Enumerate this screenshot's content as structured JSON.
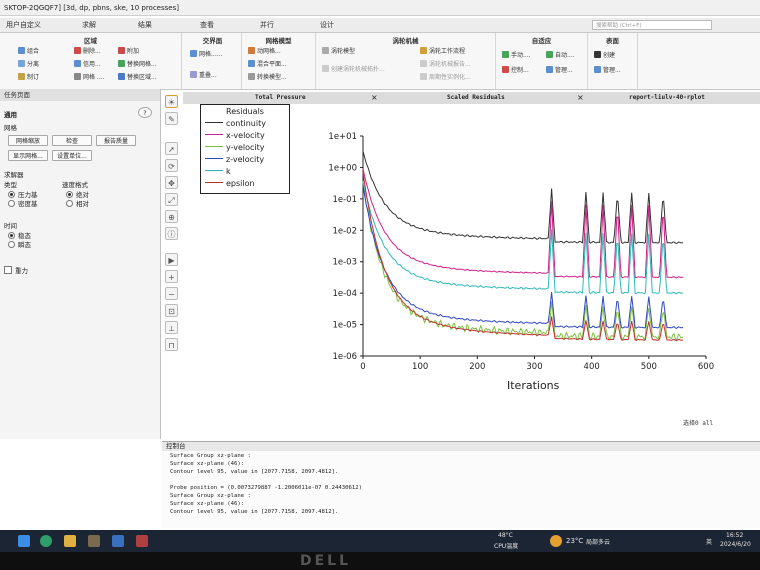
{
  "window": {
    "title": "SKTOP-2QGQF7] [3d, dp, pbns, ske, 10 processes]"
  },
  "menu": [
    "用户自定义",
    "求解",
    "结果",
    "查看",
    "并行",
    "设计"
  ],
  "search_placeholder": "搜索帮助 (Ctrl+F)",
  "ribbon": {
    "groups": [
      {
        "title": "区域",
        "buttons": [
          "组合",
          "分离",
          "制订",
          "附加",
          "替换网格...",
          "替换区域..."
        ]
      },
      {
        "title": "网格",
        "buttons": [
          "删除...",
          "信用...",
          "网格 ...."
        ]
      },
      {
        "title": "交界面",
        "buttons": [
          "网格......",
          "重叠..."
        ]
      },
      {
        "title": "网格模型",
        "buttons": [
          "动网格...",
          "混合平面...",
          "转换模型..."
        ]
      },
      {
        "title": "涡轮机械",
        "buttons": [
          "涡轮模型",
          "创建涡轮机械拓扑...",
          "涡轮工作流程",
          "涡轮机械报告...",
          "周期性实例化..."
        ]
      },
      {
        "title": "自适应",
        "buttons": [
          "手动....",
          "自动....",
          "控制...",
          "管理..."
        ]
      },
      {
        "title": "表面",
        "buttons": [
          "创建",
          "管理..."
        ]
      }
    ]
  },
  "task_panel": {
    "title": "任务页面",
    "general_label": "通用",
    "mesh_label": "网格",
    "buttons": [
      "网格缩放",
      "检查",
      "报告质量",
      "显示网格...",
      "设置单位..."
    ],
    "solver_label": "求解器",
    "type_label": "类型",
    "type_options": [
      {
        "label": "压力基",
        "on": true
      },
      {
        "label": "密度基",
        "on": false
      }
    ],
    "velocity_label": "速度格式",
    "velocity_options": [
      {
        "label": "绝对",
        "on": true
      },
      {
        "label": "相对",
        "on": false
      }
    ],
    "time_label": "时间",
    "time_options": [
      {
        "label": "稳态",
        "on": true
      },
      {
        "label": "瞬态",
        "on": false
      }
    ],
    "gravity_label": "重力"
  },
  "tabs": [
    {
      "label": "Total Pressure"
    },
    {
      "label": "Scaled Residuals"
    },
    {
      "label": "report-liulv-40-rplot"
    }
  ],
  "plot": {
    "legend_title": "Residuals",
    "series": [
      {
        "name": "continuity",
        "color": "#333333"
      },
      {
        "name": "x-velocity",
        "color": "#d0208a"
      },
      {
        "name": "y-velocity",
        "color": "#7cc040"
      },
      {
        "name": "z-velocity",
        "color": "#3048c0"
      },
      {
        "name": "k",
        "color": "#30b8b8"
      },
      {
        "name": "epsilon",
        "color": "#c03030"
      }
    ],
    "y_ticks": [
      "1e+01",
      "1e+00",
      "1e-01",
      "1e-02",
      "1e-03",
      "1e-04",
      "1e-05",
      "1e-06"
    ],
    "x_ticks": [
      "0",
      "100",
      "200",
      "300",
      "400",
      "500",
      "600"
    ],
    "xlabel": "Iterations",
    "selector_label": "选择0 all"
  },
  "console": {
    "title": "控制台",
    "lines": [
      "Surface Group xz-plane :",
      "Surface xz-plane (46):",
      "Contour level 95, value in [2077.7158, 2097.4812].",
      "",
      "Probe position = (0.0073279887 -1.2006011e-07 0.24430612)",
      "Surface Group xz-plane :",
      "Surface xz-plane (46):",
      "Contour level 95, value in [2077.7158, 2097.4812]."
    ]
  },
  "taskbar": {
    "temp": "48°C",
    "temp_label": "CPU温度",
    "weather_temp": "23°C",
    "weather": "局部多云",
    "lang": "英",
    "time": "16:52",
    "date": "2024/6/20"
  },
  "brand": "DELL"
}
